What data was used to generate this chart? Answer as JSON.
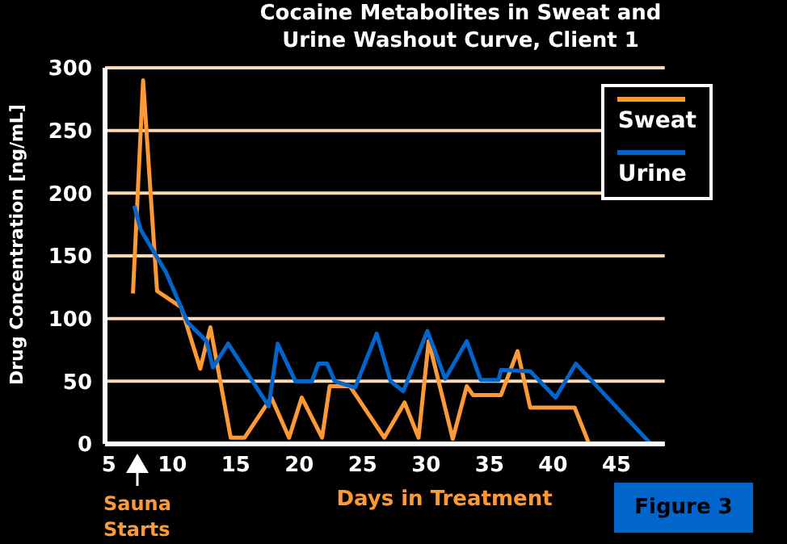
{
  "chart_data": {
    "type": "line",
    "title": "Cocaine Metabolites in Sweat and Urine Washout Curve, Client 1",
    "xlabel": "Days in Treatment",
    "ylabel": "Drug Concentration [ng/mL]",
    "annotations": [
      "Sauna Starts",
      "Figure 3"
    ],
    "xlim": [
      4.7,
      48.8
    ],
    "xticks": [
      5,
      10,
      15,
      20,
      25,
      30,
      35,
      40,
      45
    ],
    "ylim": [
      0,
      300
    ],
    "yticks": [
      0,
      50,
      100,
      150,
      200,
      250,
      300
    ],
    "grid": "y",
    "legend": "top right",
    "marker": "none",
    "line_style": "solid",
    "series": [
      {
        "name": "Sweat",
        "color": "#ff9933",
        "x": [
          6.9,
          7.7,
          8.8,
          10.7,
          12.2,
          13,
          14.6,
          15.7,
          17.8,
          19.2,
          20.2,
          21.8,
          22.4,
          24,
          26.7,
          28.3,
          29.4,
          30.2,
          32.1,
          33.2,
          33.7,
          35.9,
          37.2,
          38.2,
          41.7,
          42.8
        ],
        "values": [
          120,
          290,
          122,
          109,
          60,
          93,
          5,
          5,
          37,
          5,
          37,
          5,
          46,
          46,
          5,
          33,
          5,
          82,
          4,
          46,
          39,
          39,
          74,
          29,
          29,
          1
        ]
      },
      {
        "name": "Urine",
        "color": "#0066cc",
        "x": [
          7,
          7.5,
          9.5,
          11.2,
          12.7,
          13.2,
          14.4,
          17.6,
          18.3,
          19.7,
          21,
          21.5,
          22.2,
          22.8,
          24.4,
          26.1,
          27.2,
          28.2,
          30.1,
          31.5,
          33.2,
          34.3,
          35.7,
          35.9,
          38.2,
          40.2,
          41.8,
          47.7
        ],
        "values": [
          190,
          171,
          137,
          97,
          82,
          61,
          80,
          30,
          80,
          50,
          50,
          64,
          64,
          50,
          45,
          88,
          50,
          42,
          90,
          52,
          82,
          51,
          51,
          59,
          58,
          37,
          64,
          0
        ]
      }
    ]
  }
}
